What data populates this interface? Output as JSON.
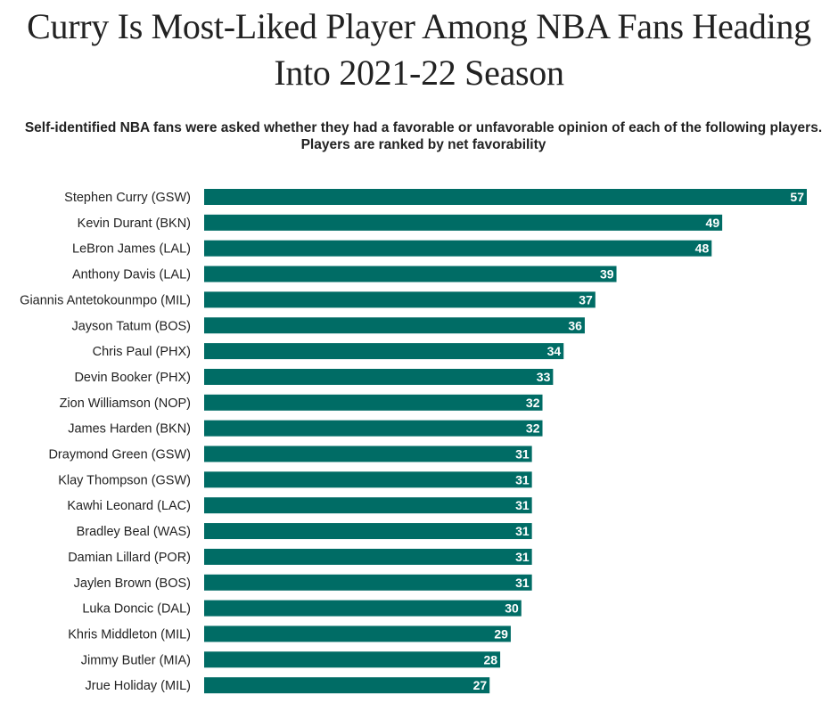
{
  "title": "Curry Is Most-Liked Player Among NBA Fans Heading Into 2021-22 Season",
  "subtitle": "Self-identified NBA fans were asked whether they had a favorable or unfavorable opinion of each of the following players. Players are ranked by net favorability",
  "colors": {
    "bar": "#006c65",
    "bar_label": "#ffffff",
    "text": "#222222"
  },
  "chart_data": {
    "type": "bar",
    "orientation": "horizontal",
    "categories": [
      "Stephen Curry (GSW)",
      "Kevin Durant (BKN)",
      "LeBron James (LAL)",
      "Anthony Davis (LAL)",
      "Giannis Antetokounmpo (MIL)",
      "Jayson Tatum (BOS)",
      "Chris Paul (PHX)",
      "Devin Booker (PHX)",
      "Zion Williamson (NOP)",
      "James Harden (BKN)",
      "Draymond Green (GSW)",
      "Klay Thompson (GSW)",
      "Kawhi Leonard (LAC)",
      "Bradley Beal (WAS)",
      "Damian Lillard (POR)",
      "Jaylen Brown (BOS)",
      "Luka Doncic (DAL)",
      "Khris Middleton (MIL)",
      "Jimmy Butler (MIA)",
      "Jrue Holiday (MIL)"
    ],
    "values": [
      57,
      49,
      48,
      39,
      37,
      36,
      34,
      33,
      32,
      32,
      31,
      31,
      31,
      31,
      31,
      31,
      30,
      29,
      28,
      27
    ],
    "data_labels": true,
    "xlim": [
      0,
      57
    ],
    "grid": false,
    "legend": "none"
  }
}
